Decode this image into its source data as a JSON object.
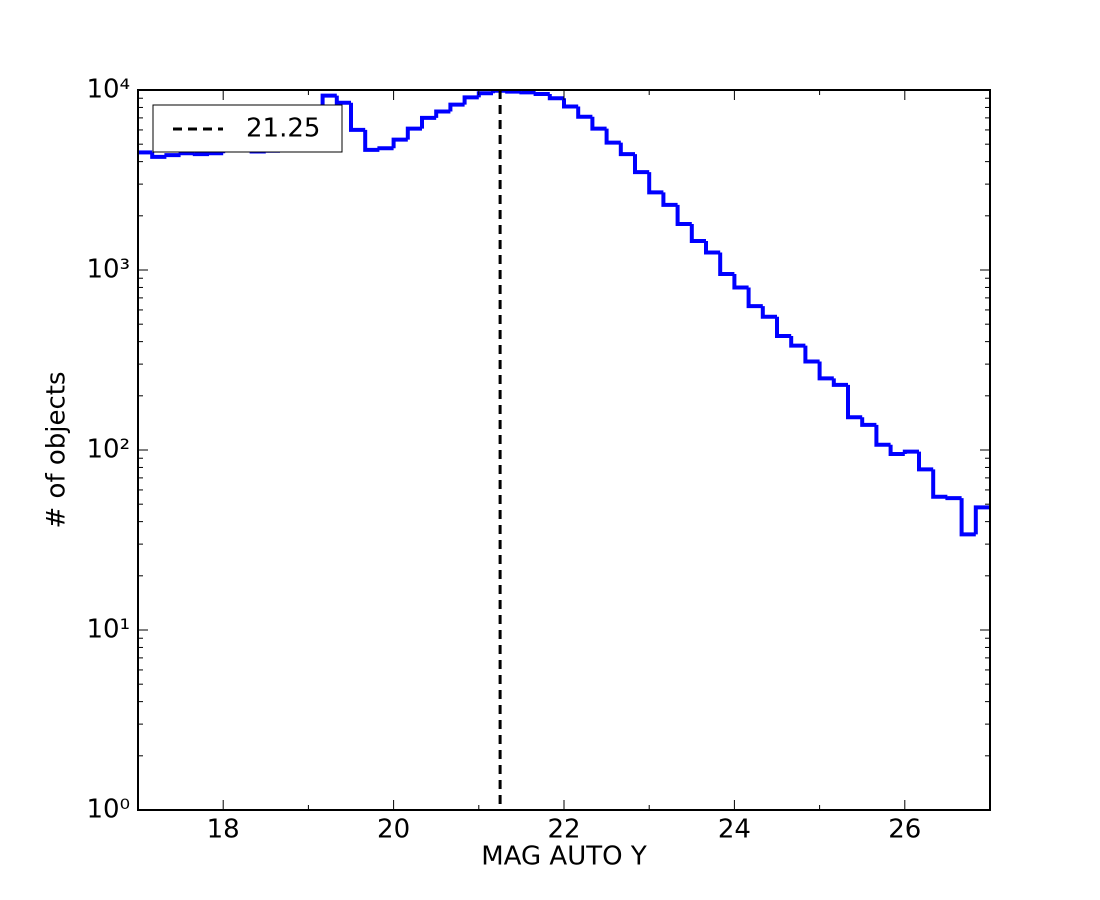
{
  "chart_data": {
    "type": "histogram",
    "xlabel": "MAG AUTO Y",
    "ylabel": "# of objects",
    "color": "#0000ff",
    "log_y": true,
    "minor_ticks": true,
    "bins": [
      17,
      17.1667,
      17.3333,
      17.5,
      17.6667,
      17.8333,
      18,
      18.1667,
      18.3333,
      18.5,
      18.6667,
      18.8333,
      19,
      19.1667,
      19.3333,
      19.5,
      19.6667,
      19.8333,
      20,
      20.1667,
      20.3333,
      20.5,
      20.6667,
      20.8333,
      21,
      21.1667,
      21.3333,
      21.5,
      21.6667,
      21.8333,
      22,
      22.1667,
      22.3333,
      22.5,
      22.6667,
      22.8333,
      23,
      23.1667,
      23.3333,
      23.5,
      23.6667,
      23.8333,
      24,
      24.1667,
      24.3333,
      24.5,
      24.6667,
      24.8333,
      25,
      25.1667,
      25.3333,
      25.5,
      25.6667,
      25.8333,
      26,
      26.1667,
      26.3333,
      26.5,
      26.6667,
      26.8333,
      27
    ],
    "values": [
      4500,
      4250,
      4350,
      4450,
      4400,
      4450,
      4700,
      4700,
      4550,
      4600,
      4800,
      5000,
      4800,
      9300,
      8500,
      6000,
      4650,
      4750,
      5300,
      6100,
      7000,
      7600,
      8300,
      9100,
      9600,
      9900,
      9800,
      9700,
      9500,
      9000,
      8100,
      7100,
      6100,
      5100,
      4400,
      3500,
      2700,
      2300,
      1800,
      1450,
      1250,
      950,
      800,
      630,
      550,
      430,
      380,
      310,
      250,
      230,
      152,
      138,
      107,
      95,
      98,
      78,
      55,
      54,
      34,
      48
    ],
    "vlines": [
      {
        "x": 21.25,
        "label": "21.25",
        "color": "#000000",
        "style": "dashed"
      }
    ],
    "legend": "upper left",
    "xlim": [
      17,
      27
    ],
    "xticks": [
      18,
      20,
      22,
      24,
      26
    ],
    "xminorticks": [
      19,
      21,
      23,
      25
    ],
    "ylim": [
      1,
      10000
    ],
    "yticks": [
      {
        "value": 1,
        "label": "10⁰"
      },
      {
        "value": 10,
        "label": "10¹"
      },
      {
        "value": 100,
        "label": "10²"
      },
      {
        "value": 1000,
        "label": "10³"
      },
      {
        "value": 10000,
        "label": "10⁴"
      }
    ]
  }
}
